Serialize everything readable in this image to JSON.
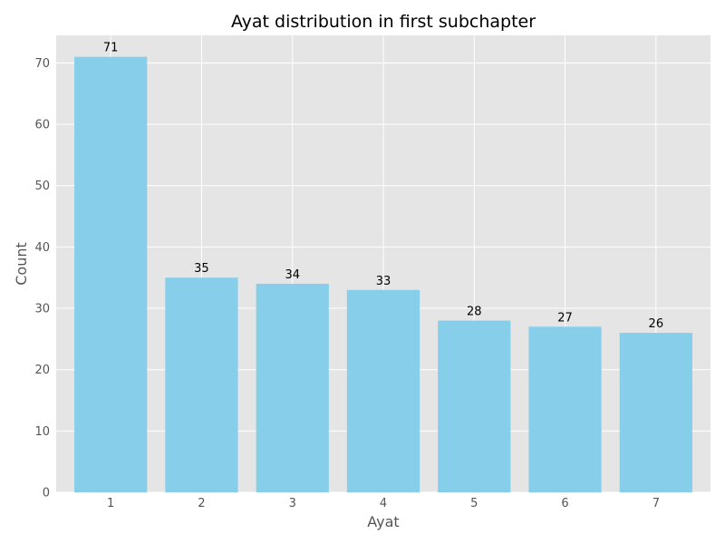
{
  "chart_data": {
    "type": "bar",
    "title": "Ayat distribution in first subchapter",
    "xlabel": "Ayat",
    "ylabel": "Count",
    "categories": [
      "1",
      "2",
      "3",
      "4",
      "5",
      "6",
      "7"
    ],
    "values": [
      71,
      35,
      34,
      33,
      28,
      27,
      26
    ],
    "ylim": [
      0,
      74.5
    ],
    "yticks": [
      0,
      10,
      20,
      30,
      40,
      50,
      60,
      70
    ],
    "grid": true,
    "legend": "none",
    "colors": {
      "bar": "#87ceeb",
      "plot_background": "#e5e5e5",
      "grid": "#ffffff",
      "figure_background": "#ffffff"
    }
  }
}
